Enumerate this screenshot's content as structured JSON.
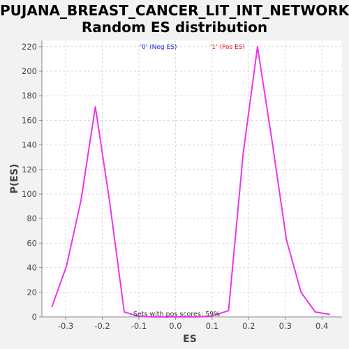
{
  "title_line1": "PUJANA_BREAST_CANCER_LIT_INT_NETWORK:",
  "title_line2": "Random ES distribution",
  "colors": {
    "neg_legend": "#2222ee",
    "pos_legend": "#ee2222",
    "line": "#ee33ee",
    "grid": "#d8d8d8",
    "plot_bg": "#ffffff"
  },
  "chart_data": {
    "type": "line",
    "xlabel": "ES",
    "ylabel": "P(ES)",
    "xlim": [
      -0.365,
      0.455
    ],
    "ylim": [
      0,
      225
    ],
    "xticks": [
      -0.3,
      -0.2,
      -0.1,
      0.0,
      0.1,
      0.2,
      0.3,
      0.4
    ],
    "xtick_labels": [
      "-0.3",
      "-0.2",
      "-0.1",
      "0.0",
      "0.1",
      "0.2",
      "0.3",
      "0.4"
    ],
    "yticks": [
      0,
      20,
      40,
      60,
      80,
      100,
      120,
      140,
      160,
      180,
      200,
      220
    ],
    "ytick_labels": [
      "0",
      "20",
      "40",
      "60",
      "80",
      "100",
      "120",
      "140",
      "160",
      "180",
      "200",
      "220"
    ],
    "grid": true,
    "legend": [
      {
        "label": "'0' (Neg ES)"
      },
      {
        "label": "'1' (Pos ES)"
      }
    ],
    "annotation": "Sets with pos scores: 59%",
    "series": [
      {
        "x": [
          -0.338,
          -0.298,
          -0.258,
          -0.219,
          -0.18,
          -0.14,
          -0.101,
          -0.062,
          -0.022,
          0.017,
          0.056,
          0.096,
          0.145,
          0.185,
          0.224,
          0.264,
          0.303,
          0.343,
          0.382,
          0.422
        ],
        "y": [
          8,
          41,
          95,
          171,
          94,
          4,
          0.5,
          0,
          0,
          0,
          0,
          0.5,
          5,
          133,
          220,
          143,
          63,
          20,
          4,
          2
        ]
      }
    ]
  }
}
